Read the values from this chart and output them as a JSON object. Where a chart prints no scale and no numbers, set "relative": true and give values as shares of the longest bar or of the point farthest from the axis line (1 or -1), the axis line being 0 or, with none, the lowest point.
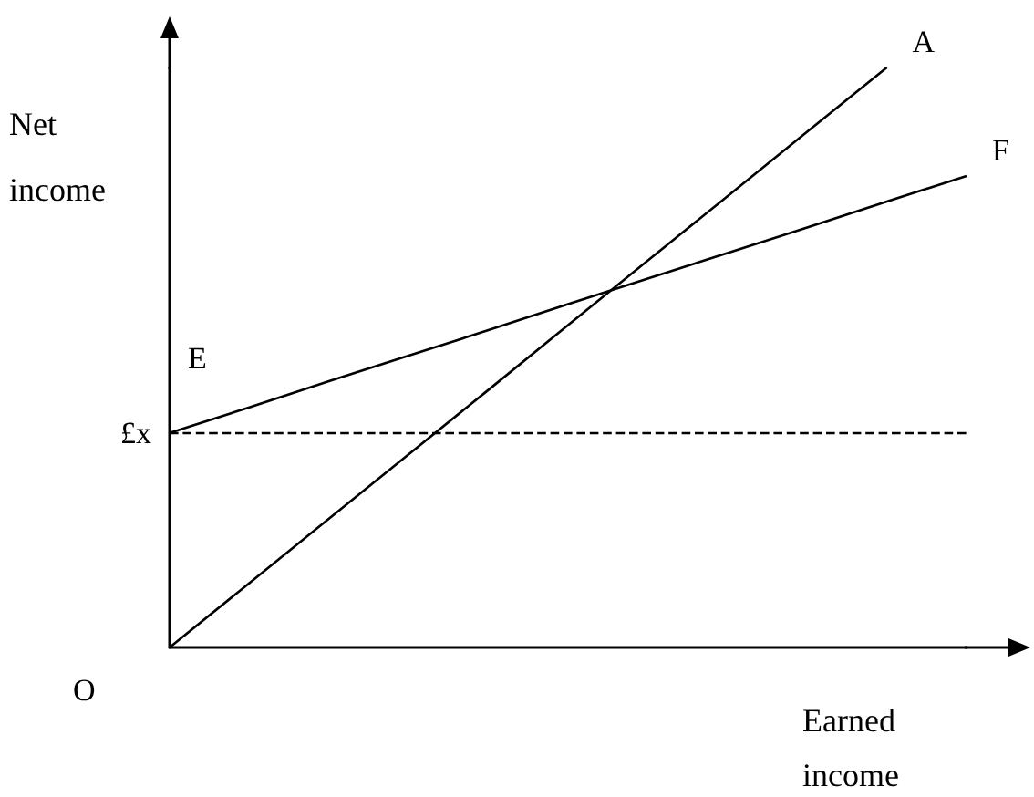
{
  "chart_data": {
    "type": "line",
    "relative": true,
    "xlabel": "Earned\nincome",
    "ylabel": "Net\nincome",
    "categories": [
      null,
      null,
      null,
      null,
      null,
      null,
      null,
      null,
      null,
      null,
      null
    ],
    "series": [
      {
        "name": "A",
        "color": "#000000",
        "values": [
          0,
          0.111,
          0.222,
          0.333,
          0.444,
          0.556,
          0.667,
          0.778,
          0.889,
          1,
          null
        ]
      },
      {
        "name": "F",
        "color": "#000000",
        "values": [
          0.37,
          0.414,
          0.459,
          0.503,
          0.547,
          0.592,
          0.636,
          0.68,
          0.724,
          0.769,
          0.813
        ]
      }
    ],
    "ref_lines": [
      {
        "axis": "y",
        "value": 0.37,
        "label": "£x",
        "line_style": "dashed",
        "color": "#000000"
      }
    ],
    "annotations": [
      "E",
      "O"
    ],
    "grid": false,
    "legend": false,
    "marker": "none",
    "line_style": "solid"
  }
}
